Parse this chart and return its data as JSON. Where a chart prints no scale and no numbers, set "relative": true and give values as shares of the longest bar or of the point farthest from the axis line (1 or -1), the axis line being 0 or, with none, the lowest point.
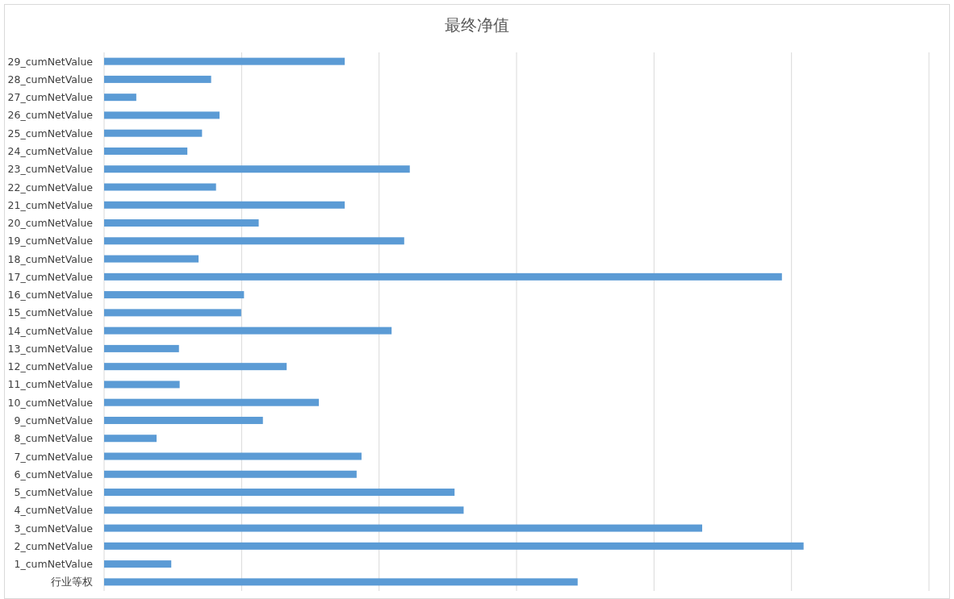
{
  "chart_data": {
    "type": "bar",
    "orientation": "horizontal",
    "relative": true,
    "title": "最终净值",
    "color": "#5b9bd5",
    "grid": "x",
    "categories": [
      "29_cumNetValue",
      "28_cumNetValue",
      "27_cumNetValue",
      "26_cumNetValue",
      "25_cumNetValue",
      "24_cumNetValue",
      "23_cumNetValue",
      "22_cumNetValue",
      "21_cumNetValue",
      "20_cumNetValue",
      "19_cumNetValue",
      "18_cumNetValue",
      "17_cumNetValue",
      "16_cumNetValue",
      "15_cumNetValue",
      "14_cumNetValue",
      "13_cumNetValue",
      "12_cumNetValue",
      "11_cumNetValue",
      "10_cumNetValue",
      "9_cumNetValue",
      "8_cumNetValue",
      "7_cumNetValue",
      "6_cumNetValue",
      "5_cumNetValue",
      "4_cumNetValue",
      "3_cumNetValue",
      "2_cumNetValue",
      "1_cumNetValue",
      "行业等权"
    ],
    "values": [
      0.344,
      0.153,
      0.046,
      0.165,
      0.14,
      0.119,
      0.437,
      0.16,
      0.344,
      0.221,
      0.429,
      0.135,
      0.969,
      0.2,
      0.196,
      0.411,
      0.107,
      0.261,
      0.108,
      0.307,
      0.227,
      0.075,
      0.368,
      0.361,
      0.501,
      0.514,
      0.855,
      1,
      0.096,
      0.677
    ]
  }
}
